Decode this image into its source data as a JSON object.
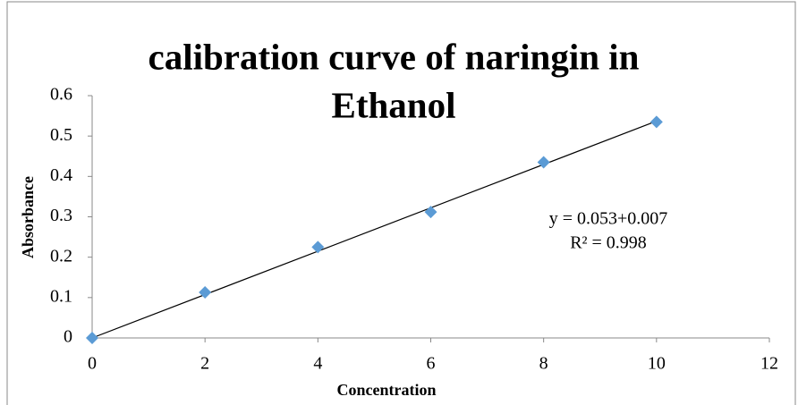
{
  "chart_data": {
    "type": "scatter",
    "title": [
      "calibration curve of naringin in",
      "Ethanol"
    ],
    "xlabel": "Concentration",
    "ylabel": "Absorbance",
    "series": [
      {
        "name": "Absorbance",
        "color": "#5b9bd5",
        "x": [
          0,
          2,
          4,
          6,
          8,
          10
        ],
        "values": [
          0,
          0.113,
          0.225,
          0.312,
          0.435,
          0.535
        ]
      }
    ],
    "trendline": {
      "color": "#000000",
      "x": [
        0,
        10
      ],
      "values": [
        0,
        0.537
      ]
    },
    "annotations": [
      "y = 0.053+0.007",
      "R² = 0.998"
    ],
    "xlim": [
      0,
      12
    ],
    "xticks": [
      0,
      2,
      4,
      6,
      8,
      10,
      12
    ],
    "ylim": [
      0,
      0.6
    ],
    "yticks": [
      0,
      0.1,
      0.2,
      0.3,
      0.4,
      0.5,
      0.6
    ],
    "grid": false
  }
}
